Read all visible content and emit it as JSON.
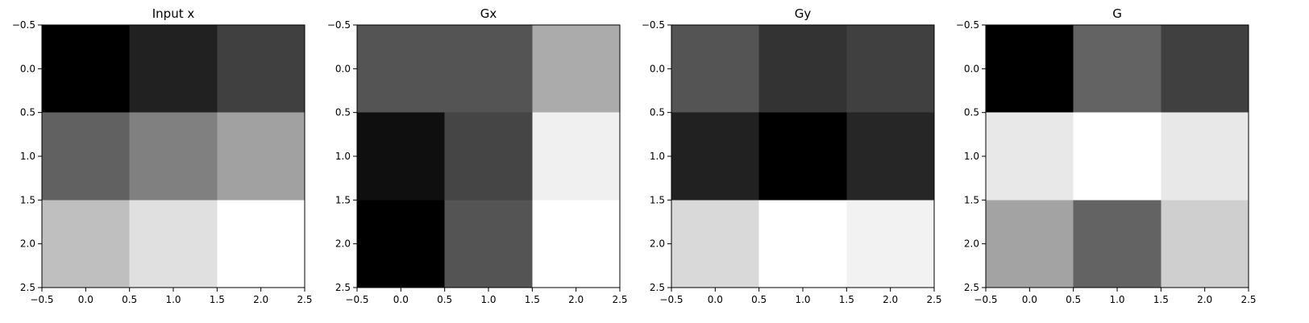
{
  "chart_data": [
    {
      "type": "heatmap",
      "title": "Input x",
      "colormap": "gray",
      "cell_values": [
        [
          0.0,
          0.13,
          0.25
        ],
        [
          0.38,
          0.5,
          0.63
        ],
        [
          0.75,
          0.88,
          1.0
        ]
      ],
      "xlim": [
        -0.5,
        2.5
      ],
      "ylim": [
        2.5,
        -0.5
      ],
      "xticks": [
        "−0.5",
        "0.0",
        "0.5",
        "1.0",
        "1.5",
        "2.0",
        "2.5"
      ],
      "yticks": [
        "−0.5",
        "0.0",
        "0.5",
        "1.0",
        "1.5",
        "2.0",
        "2.5"
      ],
      "grid": false
    },
    {
      "type": "heatmap",
      "title": "Gx",
      "colormap": "gray",
      "cell_values": [
        [
          0.33,
          0.33,
          0.67
        ],
        [
          0.06,
          0.27,
          0.94
        ],
        [
          0.0,
          0.33,
          1.0
        ]
      ],
      "xlim": [
        -0.5,
        2.5
      ],
      "ylim": [
        2.5,
        -0.5
      ],
      "xticks": [
        "−0.5",
        "0.0",
        "0.5",
        "1.0",
        "1.5",
        "2.0",
        "2.5"
      ],
      "yticks": [
        "−0.5",
        "0.0",
        "0.5",
        "1.0",
        "1.5",
        "2.0",
        "2.5"
      ],
      "grid": false
    },
    {
      "type": "heatmap",
      "title": "Gy",
      "colormap": "gray",
      "cell_values": [
        [
          0.33,
          0.2,
          0.25
        ],
        [
          0.13,
          0.0,
          0.15
        ],
        [
          0.85,
          1.0,
          0.95
        ]
      ],
      "xlim": [
        -0.5,
        2.5
      ],
      "ylim": [
        2.5,
        -0.5
      ],
      "xticks": [
        "−0.5",
        "0.0",
        "0.5",
        "1.0",
        "1.5",
        "2.0",
        "2.5"
      ],
      "yticks": [
        "−0.5",
        "0.0",
        "0.5",
        "1.0",
        "1.5",
        "2.0",
        "2.5"
      ],
      "grid": false
    },
    {
      "type": "heatmap",
      "title": "G",
      "colormap": "gray",
      "cell_values": [
        [
          0.0,
          0.39,
          0.25
        ],
        [
          0.91,
          1.0,
          0.91
        ],
        [
          0.64,
          0.39,
          0.81
        ]
      ],
      "xlim": [
        -0.5,
        2.5
      ],
      "ylim": [
        2.5,
        -0.5
      ],
      "xticks": [
        "−0.5",
        "0.0",
        "0.5",
        "1.0",
        "1.5",
        "2.0",
        "2.5"
      ],
      "yticks": [
        "−0.5",
        "0.0",
        "0.5",
        "1.0",
        "1.5",
        "2.0",
        "2.5"
      ],
      "grid": false
    }
  ]
}
